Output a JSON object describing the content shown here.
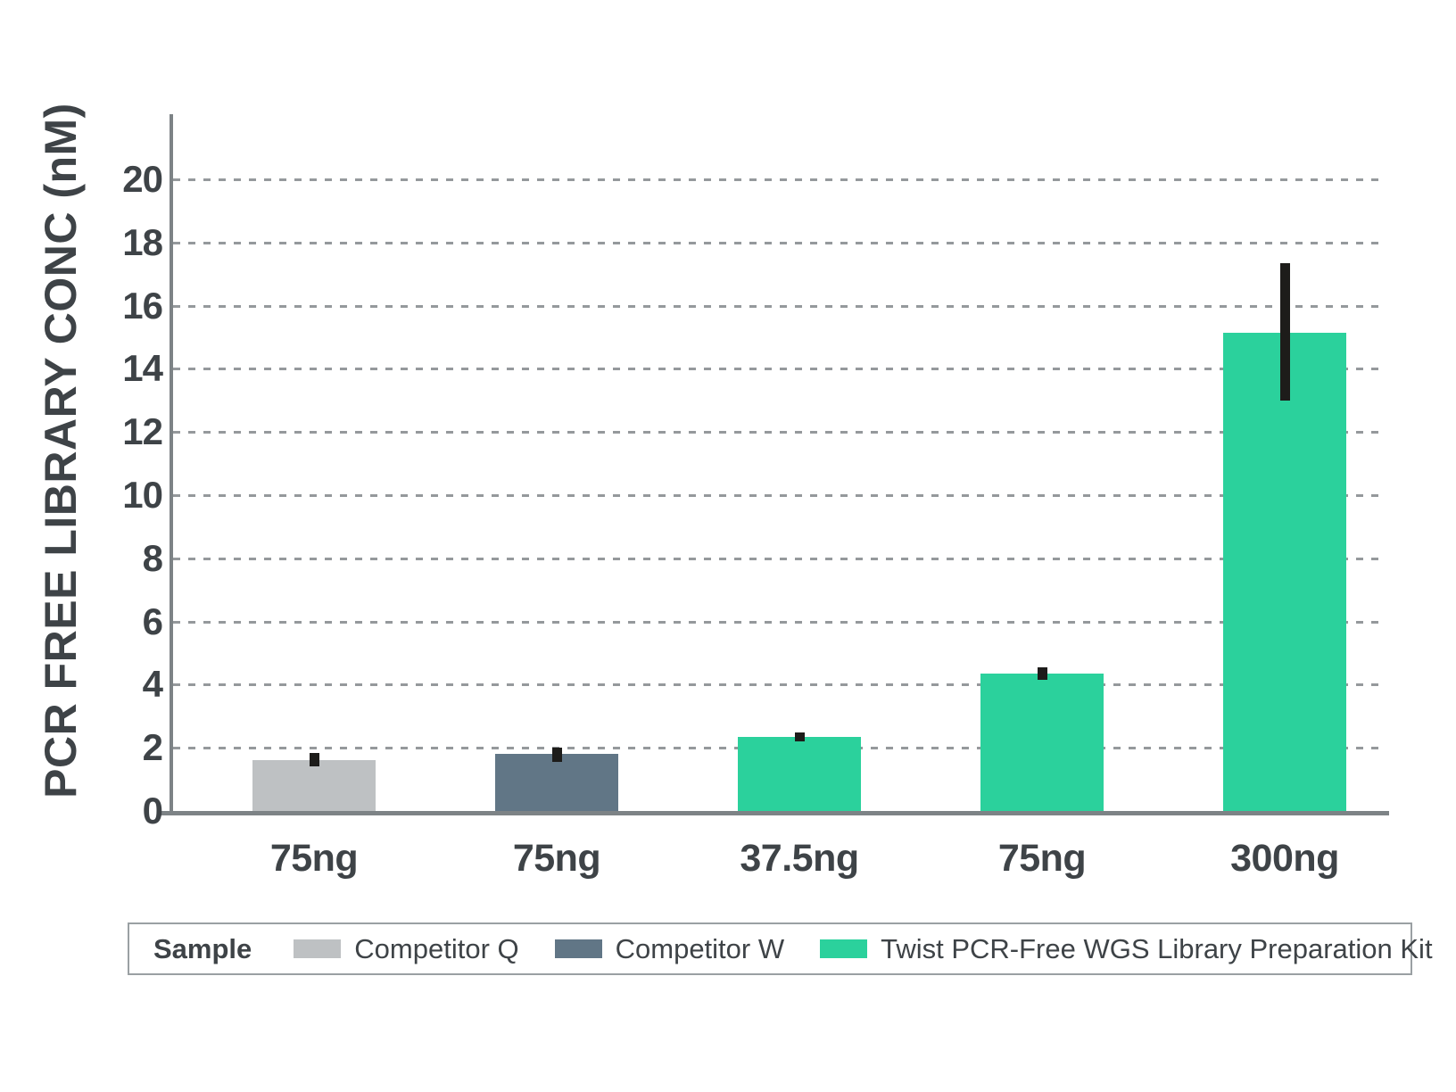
{
  "colors": {
    "text": "#3e4347",
    "axis": "#7d8386",
    "gridline": "#95999c",
    "error_bar": "#1d1c1a",
    "legend_border": "#9aa0a3",
    "competitor_q": "#bec1c3",
    "competitor_w": "#617686",
    "twist_green": "#2bd19c"
  },
  "chart_data": {
    "type": "bar",
    "title": "",
    "xlabel": "",
    "ylabel": "PCR FREE LIBRARY CONC (nM)",
    "ylim": [
      0,
      20
    ],
    "yticks": [
      0,
      2,
      4,
      6,
      8,
      10,
      12,
      14,
      16,
      18,
      20
    ],
    "grid": "horizontal-dashed",
    "legend_position": "bottom",
    "legend_title": "Sample",
    "series": [
      {
        "name": "Competitor Q",
        "color": "#bec1c3"
      },
      {
        "name": "Competitor W",
        "color": "#617686"
      },
      {
        "name": "Twist PCR-Free WGS Library Preparation Kit",
        "color": "#2bd19c"
      }
    ],
    "bars": [
      {
        "x_label": "75ng",
        "series": "Competitor Q",
        "value": 1.6,
        "error_low": 1.4,
        "error_high": 1.85
      },
      {
        "x_label": "75ng",
        "series": "Competitor W",
        "value": 1.8,
        "error_low": 1.55,
        "error_high": 2.0
      },
      {
        "x_label": "37.5ng",
        "series": "Twist PCR-Free WGS Library Preparation Kit",
        "value": 2.35,
        "error_low": 2.2,
        "error_high": 2.5
      },
      {
        "x_label": "75ng",
        "series": "Twist PCR-Free WGS Library Preparation Kit",
        "value": 4.35,
        "error_low": 4.15,
        "error_high": 4.55
      },
      {
        "x_label": "300ng",
        "series": "Twist PCR-Free WGS Library Preparation Kit",
        "value": 15.15,
        "error_low": 13.0,
        "error_high": 17.35
      }
    ]
  }
}
